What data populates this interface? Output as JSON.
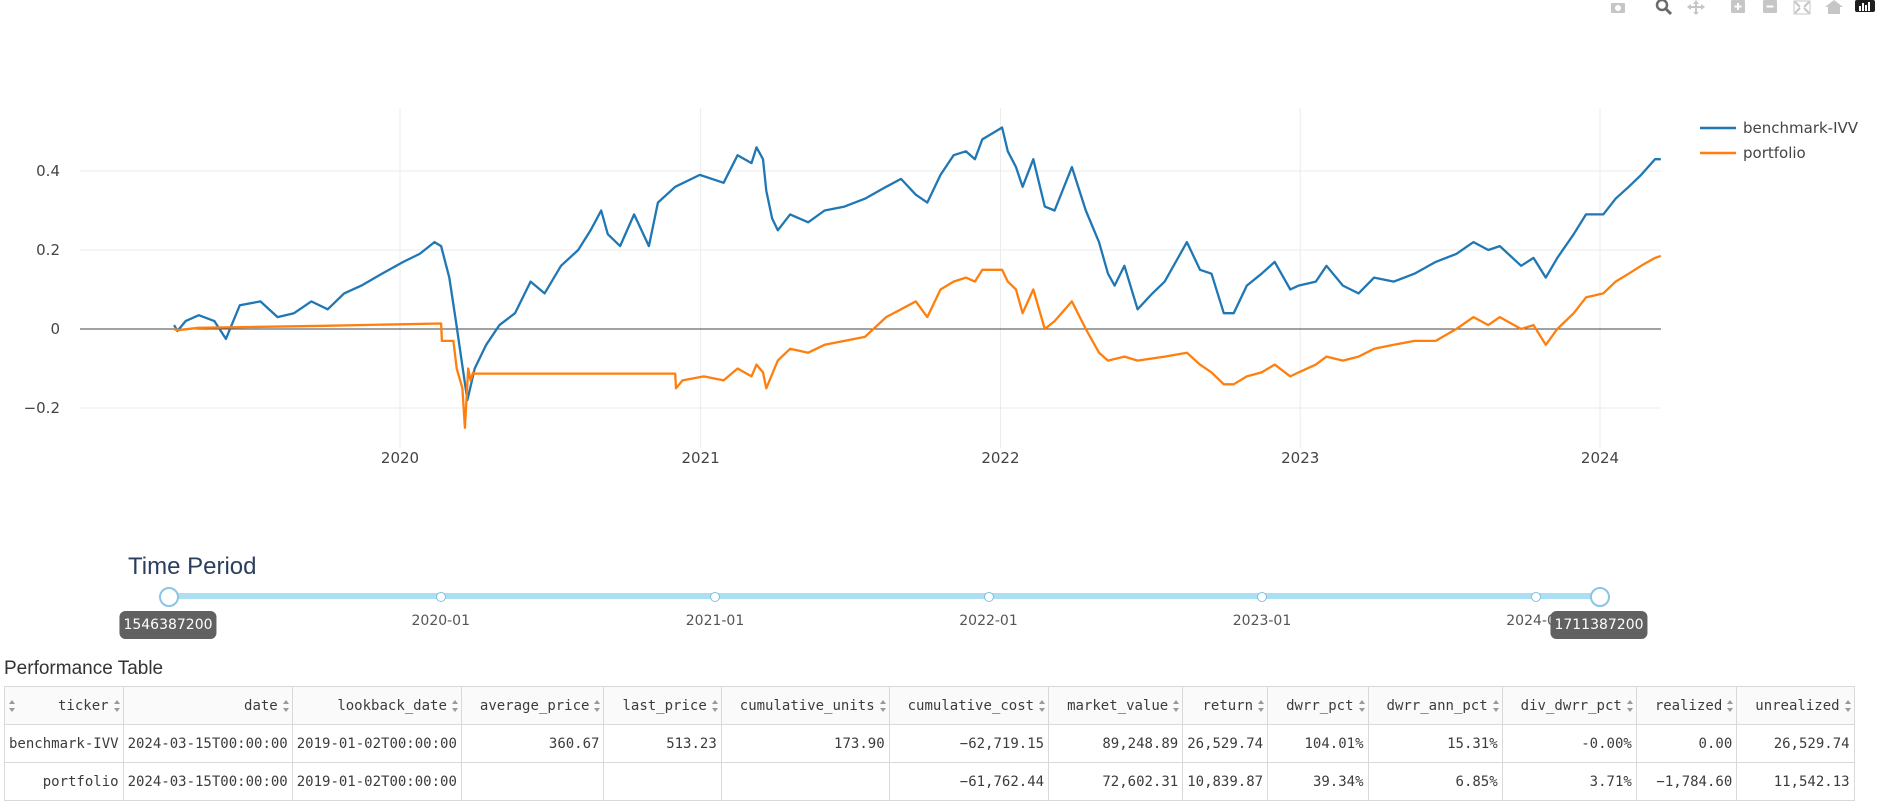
{
  "toolbar": {
    "buttons": [
      {
        "name": "camera-icon",
        "title": "Download plot as a png"
      },
      {
        "name": "zoom-icon",
        "title": "Zoom"
      },
      {
        "name": "pan-icon",
        "title": "Pan"
      },
      {
        "name": "zoom-in-icon",
        "title": "Zoom in"
      },
      {
        "name": "zoom-out-icon",
        "title": "Zoom out"
      },
      {
        "name": "autoscale-icon",
        "title": "Autoscale"
      },
      {
        "name": "reset-axes-icon",
        "title": "Reset axes"
      },
      {
        "name": "plotly-logo-icon",
        "title": "Produced with Plotly"
      }
    ]
  },
  "chart_data": {
    "type": "line",
    "title": "",
    "xlabel": "",
    "ylabel": "",
    "x_range": [
      "2019-01-02",
      "2024-03-15"
    ],
    "ylim": [
      -0.27,
      0.56
    ],
    "y_ticks": [
      -0.2,
      0,
      0.2,
      0.4
    ],
    "y_tick_labels": [
      "−0.2",
      "0",
      "0.2",
      "0.4"
    ],
    "x_ticks": [
      "2020-01-01",
      "2021-01-01",
      "2022-01-01",
      "2023-01-01",
      "2024-01-01"
    ],
    "x_tick_labels": [
      "2020",
      "2021",
      "2022",
      "2023",
      "2024"
    ],
    "grid": true,
    "zero_line": true,
    "legend_position": "top-right",
    "colors": {
      "benchmark": "#1f77b4",
      "portfolio": "#ff7f0e"
    },
    "series": [
      {
        "name": "benchmark-IVV",
        "points": [
          [
            "2019-04-01",
            0.01
          ],
          [
            "2019-04-05",
            -0.005
          ],
          [
            "2019-04-15",
            0.02
          ],
          [
            "2019-05-01",
            0.035
          ],
          [
            "2019-05-20",
            0.02
          ],
          [
            "2019-06-03",
            -0.025
          ],
          [
            "2019-06-20",
            0.06
          ],
          [
            "2019-07-15",
            0.07
          ],
          [
            "2019-08-05",
            0.03
          ],
          [
            "2019-08-25",
            0.04
          ],
          [
            "2019-09-15",
            0.07
          ],
          [
            "2019-10-05",
            0.05
          ],
          [
            "2019-10-25",
            0.09
          ],
          [
            "2019-11-15",
            0.11
          ],
          [
            "2019-12-10",
            0.14
          ],
          [
            "2020-01-05",
            0.17
          ],
          [
            "2020-01-25",
            0.19
          ],
          [
            "2020-02-12",
            0.22
          ],
          [
            "2020-02-20",
            0.21
          ],
          [
            "2020-03-01",
            0.13
          ],
          [
            "2020-03-09",
            0.02
          ],
          [
            "2020-03-16",
            -0.08
          ],
          [
            "2020-03-23",
            -0.18
          ],
          [
            "2020-04-01",
            -0.1
          ],
          [
            "2020-04-15",
            -0.04
          ],
          [
            "2020-05-01",
            0.01
          ],
          [
            "2020-05-20",
            0.04
          ],
          [
            "2020-06-08",
            0.12
          ],
          [
            "2020-06-25",
            0.09
          ],
          [
            "2020-07-15",
            0.16
          ],
          [
            "2020-08-05",
            0.2
          ],
          [
            "2020-08-20",
            0.25
          ],
          [
            "2020-09-02",
            0.3
          ],
          [
            "2020-09-10",
            0.24
          ],
          [
            "2020-09-25",
            0.21
          ],
          [
            "2020-10-12",
            0.29
          ],
          [
            "2020-10-30",
            0.21
          ],
          [
            "2020-11-10",
            0.32
          ],
          [
            "2020-12-01",
            0.36
          ],
          [
            "2020-12-31",
            0.39
          ],
          [
            "2021-01-29",
            0.37
          ],
          [
            "2021-02-15",
            0.44
          ],
          [
            "2021-03-04",
            0.42
          ],
          [
            "2021-03-10",
            0.46
          ],
          [
            "2021-03-18",
            0.43
          ],
          [
            "2021-03-22",
            0.35
          ],
          [
            "2021-03-29",
            0.28
          ],
          [
            "2021-04-05",
            0.25
          ],
          [
            "2021-04-20",
            0.29
          ],
          [
            "2021-05-12",
            0.27
          ],
          [
            "2021-06-01",
            0.3
          ],
          [
            "2021-06-25",
            0.31
          ],
          [
            "2021-07-20",
            0.33
          ],
          [
            "2021-08-15",
            0.36
          ],
          [
            "2021-09-02",
            0.38
          ],
          [
            "2021-09-20",
            0.34
          ],
          [
            "2021-10-04",
            0.32
          ],
          [
            "2021-10-20",
            0.39
          ],
          [
            "2021-11-05",
            0.44
          ],
          [
            "2021-11-20",
            0.45
          ],
          [
            "2021-12-01",
            0.43
          ],
          [
            "2021-12-10",
            0.48
          ],
          [
            "2022-01-03",
            0.51
          ],
          [
            "2022-01-10",
            0.45
          ],
          [
            "2022-01-20",
            0.41
          ],
          [
            "2022-01-28",
            0.36
          ],
          [
            "2022-02-10",
            0.43
          ],
          [
            "2022-02-24",
            0.31
          ],
          [
            "2022-03-08",
            0.3
          ],
          [
            "2022-03-29",
            0.41
          ],
          [
            "2022-04-15",
            0.3
          ],
          [
            "2022-05-01",
            0.22
          ],
          [
            "2022-05-12",
            0.14
          ],
          [
            "2022-05-20",
            0.11
          ],
          [
            "2022-06-01",
            0.16
          ],
          [
            "2022-06-17",
            0.05
          ],
          [
            "2022-07-05",
            0.09
          ],
          [
            "2022-07-20",
            0.12
          ],
          [
            "2022-08-16",
            0.22
          ],
          [
            "2022-09-01",
            0.15
          ],
          [
            "2022-09-15",
            0.14
          ],
          [
            "2022-09-30",
            0.04
          ],
          [
            "2022-10-12",
            0.04
          ],
          [
            "2022-10-28",
            0.11
          ],
          [
            "2022-11-15",
            0.14
          ],
          [
            "2022-12-01",
            0.17
          ],
          [
            "2022-12-20",
            0.1
          ],
          [
            "2022-12-30",
            0.11
          ],
          [
            "2023-01-20",
            0.12
          ],
          [
            "2023-02-02",
            0.16
          ],
          [
            "2023-02-22",
            0.11
          ],
          [
            "2023-03-13",
            0.09
          ],
          [
            "2023-04-01",
            0.13
          ],
          [
            "2023-04-25",
            0.12
          ],
          [
            "2023-05-20",
            0.14
          ],
          [
            "2023-06-15",
            0.17
          ],
          [
            "2023-07-10",
            0.19
          ],
          [
            "2023-07-31",
            0.22
          ],
          [
            "2023-08-18",
            0.2
          ],
          [
            "2023-09-01",
            0.21
          ],
          [
            "2023-09-27",
            0.16
          ],
          [
            "2023-10-12",
            0.18
          ],
          [
            "2023-10-27",
            0.13
          ],
          [
            "2023-11-10",
            0.18
          ],
          [
            "2023-11-30",
            0.24
          ],
          [
            "2023-12-15",
            0.29
          ],
          [
            "2024-01-05",
            0.29
          ],
          [
            "2024-01-20",
            0.33
          ],
          [
            "2024-02-05",
            0.36
          ],
          [
            "2024-02-20",
            0.39
          ],
          [
            "2024-03-08",
            0.43
          ],
          [
            "2024-03-15",
            0.43
          ]
        ]
      },
      {
        "name": "portfolio",
        "points": [
          [
            "2019-04-01",
            0.0
          ],
          [
            "2019-04-05",
            -0.003
          ],
          [
            "2019-05-01",
            0.003
          ],
          [
            "2019-07-01",
            0.005
          ],
          [
            "2019-10-01",
            0.008
          ],
          [
            "2020-01-01",
            0.012
          ],
          [
            "2020-02-20",
            0.014
          ],
          [
            "2020-02-21",
            -0.03
          ],
          [
            "2020-03-06",
            -0.03
          ],
          [
            "2020-03-10",
            -0.1
          ],
          [
            "2020-03-17",
            -0.15
          ],
          [
            "2020-03-20",
            -0.25
          ],
          [
            "2020-03-24",
            -0.1
          ],
          [
            "2020-03-27",
            -0.13
          ],
          [
            "2020-03-30",
            -0.11
          ],
          [
            "2020-04-01",
            -0.113
          ],
          [
            "2020-12-01",
            -0.113
          ],
          [
            "2020-12-02",
            -0.15
          ],
          [
            "2020-12-10",
            -0.13
          ],
          [
            "2021-01-05",
            -0.12
          ],
          [
            "2021-01-29",
            -0.13
          ],
          [
            "2021-02-15",
            -0.1
          ],
          [
            "2021-03-04",
            -0.12
          ],
          [
            "2021-03-10",
            -0.09
          ],
          [
            "2021-03-18",
            -0.11
          ],
          [
            "2021-03-22",
            -0.15
          ],
          [
            "2021-04-05",
            -0.08
          ],
          [
            "2021-04-20",
            -0.05
          ],
          [
            "2021-05-12",
            -0.06
          ],
          [
            "2021-06-01",
            -0.04
          ],
          [
            "2021-06-25",
            -0.03
          ],
          [
            "2021-07-20",
            -0.02
          ],
          [
            "2021-08-15",
            0.03
          ],
          [
            "2021-09-02",
            0.05
          ],
          [
            "2021-09-20",
            0.07
          ],
          [
            "2021-10-04",
            0.03
          ],
          [
            "2021-10-20",
            0.1
          ],
          [
            "2021-11-05",
            0.12
          ],
          [
            "2021-11-20",
            0.13
          ],
          [
            "2021-12-01",
            0.12
          ],
          [
            "2021-12-10",
            0.15
          ],
          [
            "2022-01-03",
            0.15
          ],
          [
            "2022-01-10",
            0.12
          ],
          [
            "2022-01-20",
            0.1
          ],
          [
            "2022-01-28",
            0.04
          ],
          [
            "2022-02-10",
            0.1
          ],
          [
            "2022-02-24",
            0.0
          ],
          [
            "2022-03-08",
            0.02
          ],
          [
            "2022-03-29",
            0.07
          ],
          [
            "2022-04-15",
            0.0
          ],
          [
            "2022-05-01",
            -0.06
          ],
          [
            "2022-05-12",
            -0.08
          ],
          [
            "2022-06-01",
            -0.07
          ],
          [
            "2022-06-17",
            -0.08
          ],
          [
            "2022-07-20",
            -0.07
          ],
          [
            "2022-08-16",
            -0.06
          ],
          [
            "2022-09-01",
            -0.09
          ],
          [
            "2022-09-15",
            -0.11
          ],
          [
            "2022-09-30",
            -0.14
          ],
          [
            "2022-10-12",
            -0.14
          ],
          [
            "2022-10-28",
            -0.12
          ],
          [
            "2022-11-15",
            -0.11
          ],
          [
            "2022-12-01",
            -0.09
          ],
          [
            "2022-12-20",
            -0.12
          ],
          [
            "2022-12-30",
            -0.11
          ],
          [
            "2023-01-20",
            -0.09
          ],
          [
            "2023-02-02",
            -0.07
          ],
          [
            "2023-02-22",
            -0.08
          ],
          [
            "2023-03-13",
            -0.07
          ],
          [
            "2023-04-01",
            -0.05
          ],
          [
            "2023-04-25",
            -0.04
          ],
          [
            "2023-05-20",
            -0.03
          ],
          [
            "2023-06-15",
            -0.03
          ],
          [
            "2023-07-10",
            0.0
          ],
          [
            "2023-07-31",
            0.03
          ],
          [
            "2023-08-18",
            0.01
          ],
          [
            "2023-09-01",
            0.03
          ],
          [
            "2023-09-27",
            0.0
          ],
          [
            "2023-10-12",
            0.01
          ],
          [
            "2023-10-27",
            -0.04
          ],
          [
            "2023-11-10",
            0.0
          ],
          [
            "2023-11-30",
            0.04
          ],
          [
            "2023-12-15",
            0.08
          ],
          [
            "2024-01-05",
            0.09
          ],
          [
            "2024-01-20",
            0.12
          ],
          [
            "2024-02-05",
            0.14
          ],
          [
            "2024-02-20",
            0.16
          ],
          [
            "2024-03-08",
            0.18
          ],
          [
            "2024-03-15",
            0.185
          ]
        ]
      }
    ]
  },
  "slider": {
    "title": "Time Period",
    "min_label": "1546387200",
    "max_label": "1711387200",
    "min_value": 1546387200,
    "max_value": 1711387200,
    "low": 1546387200,
    "high": 1711387200,
    "marks": [
      {
        "value": 1546387200,
        "label": ""
      },
      {
        "value": 1577836800,
        "label": "2020-01"
      },
      {
        "value": 1609459200,
        "label": "2021-01"
      },
      {
        "value": 1640995200,
        "label": "2022-01"
      },
      {
        "value": 1672531200,
        "label": "2023-01"
      },
      {
        "value": 1704067200,
        "label": "2024-01"
      },
      {
        "value": 1711387200,
        "label": ""
      }
    ]
  },
  "table": {
    "title": "Performance Table",
    "columns": [
      "ticker",
      "date",
      "lookback_date",
      "average_price",
      "last_price",
      "cumulative_units",
      "cumulative_cost",
      "market_value",
      "return",
      "dwrr_pct",
      "dwrr_ann_pct",
      "div_dwrr_pct",
      "realized",
      "unrealized"
    ],
    "rows": [
      [
        "benchmark-IVV",
        "2024-03-15T00:00:00",
        "2019-01-02T00:00:00",
        "360.67",
        "513.23",
        "173.90",
        "−62,719.15",
        "89,248.89",
        "26,529.74",
        "104.01%",
        "15.31%",
        "-0.00%",
        "0.00",
        "26,529.74"
      ],
      [
        "portfolio",
        "2024-03-15T00:00:00",
        "2019-01-02T00:00:00",
        "",
        "",
        "",
        "−61,762.44",
        "72,602.31",
        "10,839.87",
        "39.34%",
        "6.85%",
        "3.71%",
        "−1,784.60",
        "11,542.13"
      ]
    ]
  }
}
